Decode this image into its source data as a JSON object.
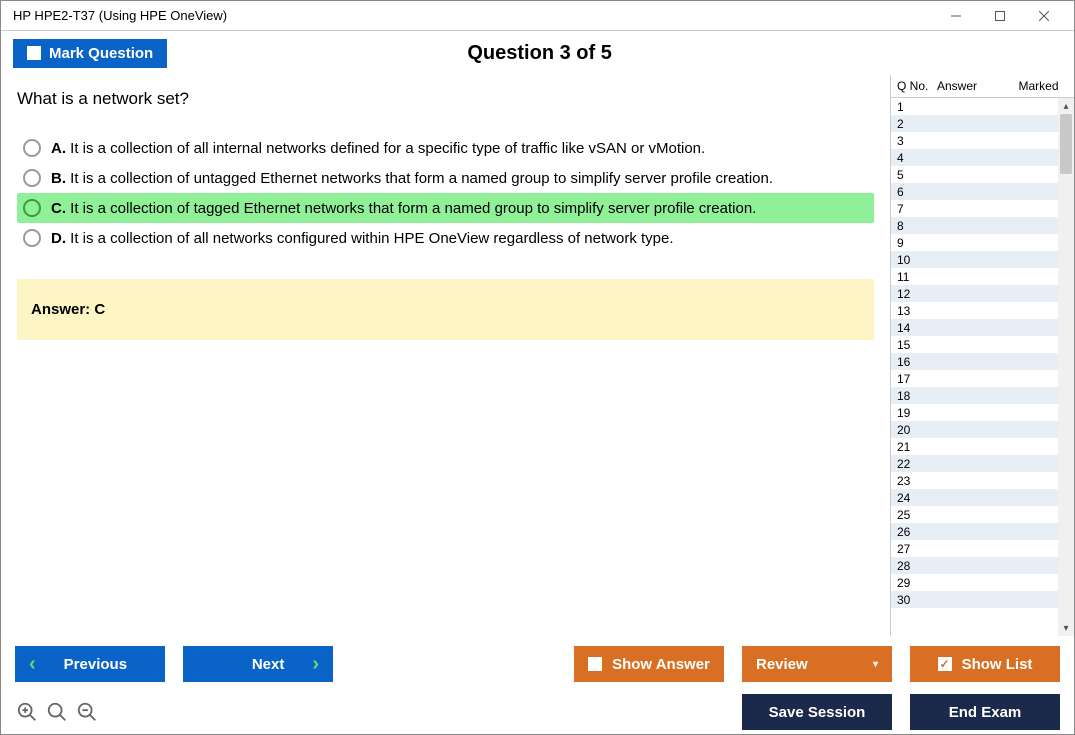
{
  "window": {
    "title": "HP HPE2-T37 (Using HPE OneView)"
  },
  "header": {
    "mark_label": "Mark Question",
    "counter": "Question 3 of 5"
  },
  "question": {
    "text": "What is a network set?",
    "options": [
      {
        "letter": "A.",
        "text": "It is a collection of all internal networks defined for a specific type of traffic like vSAN or vMotion.",
        "selected": false
      },
      {
        "letter": "B.",
        "text": "It is a collection of untagged Ethernet networks that form a named group to simplify server profile creation.",
        "selected": false
      },
      {
        "letter": "C.",
        "text": "It is a collection of tagged Ethernet networks that form a named group to simplify server profile creation.",
        "selected": true
      },
      {
        "letter": "D.",
        "text": "It is a collection of all networks configured within HPE OneView regardless of network type.",
        "selected": false
      }
    ],
    "answer_label": "Answer: C"
  },
  "sidebar": {
    "col_q": "Q No.",
    "col_a": "Answer",
    "col_m": "Marked",
    "count": 30
  },
  "footer": {
    "previous": "Previous",
    "next": "Next",
    "show_answer": "Show Answer",
    "review": "Review",
    "show_list": "Show List",
    "save_session": "Save Session",
    "end_exam": "End Exam"
  },
  "colors": {
    "blue": "#0a64c8",
    "orange": "#d86f23",
    "dark": "#1b2a4a",
    "highlight": "#8ff097",
    "answer_bg": "#fdf5c4",
    "row_alt": "#e8eef6"
  }
}
